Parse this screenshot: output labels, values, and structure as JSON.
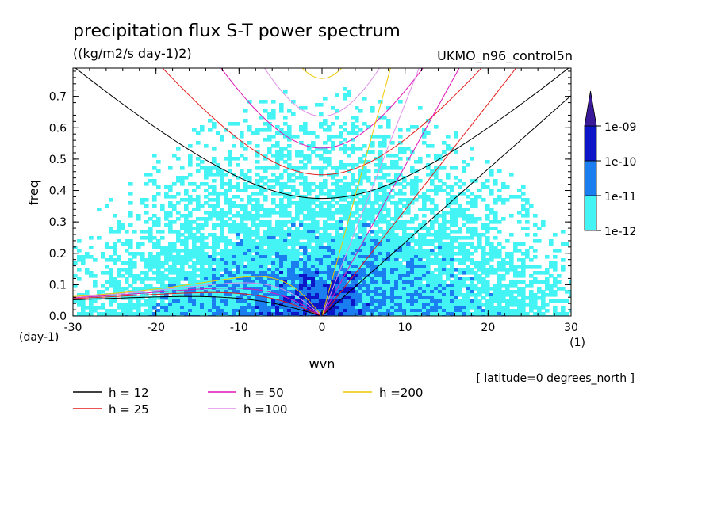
{
  "chart_data": {
    "type": "heatmap",
    "title": "precipitation flux S-T power spectrum",
    "units": "((kg/m2/s day-1)2)",
    "model_label": "UKMO_n96_control5n",
    "xlabel": "wvn",
    "ylabel": "freq",
    "x_unit": "(1)",
    "y_unit": "(day-1)",
    "xlim": [
      -30,
      30
    ],
    "ylim": [
      0,
      0.79
    ],
    "xticks": [
      -30,
      -20,
      -10,
      0,
      10,
      20,
      30
    ],
    "yticks": [
      0.0,
      0.1,
      0.2,
      0.3,
      0.4,
      0.5,
      0.6,
      0.7
    ],
    "xtick_labels": [
      "-30",
      "-20",
      "-10",
      "0",
      "10",
      "20",
      "30"
    ],
    "ytick_labels": [
      "0.0",
      "0.1",
      "0.2",
      "0.3",
      "0.4",
      "0.5",
      "0.6",
      "0.7"
    ],
    "colorbar": {
      "levels": [
        "1e-12",
        "1e-11",
        "1e-10",
        "1e-09"
      ],
      "colors": [
        "#44f4f4",
        "#1a7ef0",
        "#0c16c8",
        "#3a1a9a"
      ]
    },
    "annotation": "[ latitude=0 degrees_north ]",
    "legend": [
      {
        "label": "h = 12",
        "h": 12,
        "color": "#000000"
      },
      {
        "label": "h = 25",
        "h": 25,
        "color": "#e41a1a"
      },
      {
        "label": "h = 50",
        "h": 50,
        "color": "#e014b8"
      },
      {
        "label": "h =100",
        "h": 100,
        "color": "#e090e8"
      },
      {
        "label": "h =200",
        "h": 200,
        "color": "#f0c800"
      }
    ]
  }
}
